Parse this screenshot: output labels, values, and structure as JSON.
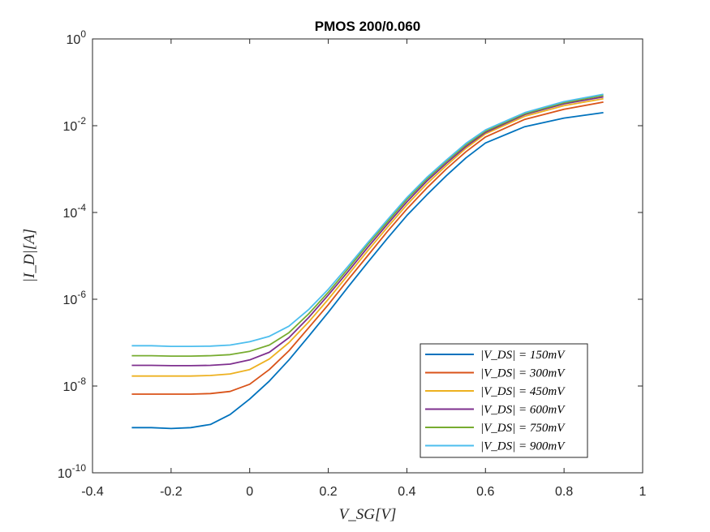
{
  "chart_data": {
    "type": "line",
    "title": "PMOS 200/0.060",
    "xlabel": "V_SG[V]",
    "ylabel": "|I_D|[A]",
    "xlim": [
      -0.4,
      1
    ],
    "ylim": [
      1e-10,
      1
    ],
    "yscale": "log",
    "grid": false,
    "legend_position": "bottom-right",
    "x_ticks": [
      "-0.4",
      "-0.2",
      "0",
      "0.2",
      "0.4",
      "0.6",
      "0.8",
      "1"
    ],
    "y_ticks": [
      {
        "base": "10",
        "exp": "-10"
      },
      {
        "base": "10",
        "exp": "-8"
      },
      {
        "base": "10",
        "exp": "-6"
      },
      {
        "base": "10",
        "exp": "-4"
      },
      {
        "base": "10",
        "exp": "-2"
      },
      {
        "base": "10",
        "exp": "0"
      }
    ],
    "x": [
      -0.3,
      -0.25,
      -0.2,
      -0.15,
      -0.1,
      -0.05,
      0.0,
      0.05,
      0.1,
      0.15,
      0.2,
      0.25,
      0.3,
      0.35,
      0.4,
      0.45,
      0.5,
      0.55,
      0.6,
      0.7,
      0.8,
      0.9
    ],
    "series": [
      {
        "name": "|V_DS| = 150mV",
        "color": "#0072BD",
        "values": [
          1.1e-09,
          1.1e-09,
          1.05e-09,
          1.1e-09,
          1.3e-09,
          2.2e-09,
          5e-09,
          1.3e-08,
          4e-08,
          1.4e-07,
          5e-07,
          1.9e-06,
          7e-06,
          2.5e-05,
          8.5e-05,
          0.00025,
          0.0007,
          0.0018,
          0.004,
          0.0095,
          0.015,
          0.02
        ]
      },
      {
        "name": "|V_DS| = 300mV",
        "color": "#D95319",
        "values": [
          6.5e-09,
          6.5e-09,
          6.5e-09,
          6.5e-09,
          6.7e-09,
          7.5e-09,
          1.1e-08,
          2.4e-08,
          6.5e-08,
          2.2e-07,
          7.5e-07,
          2.8e-06,
          1e-05,
          3.6e-05,
          0.00012,
          0.00036,
          0.001,
          0.0025,
          0.0055,
          0.014,
          0.024,
          0.035
        ]
      },
      {
        "name": "|V_DS| = 450mV",
        "color": "#EDB120",
        "values": [
          1.7e-08,
          1.7e-08,
          1.7e-08,
          1.7e-08,
          1.75e-08,
          1.9e-08,
          2.4e-08,
          4.2e-08,
          1e-07,
          3e-07,
          1e-06,
          3.6e-06,
          1.3e-05,
          4.5e-05,
          0.00015,
          0.00045,
          0.0012,
          0.003,
          0.0065,
          0.0165,
          0.029,
          0.042
        ]
      },
      {
        "name": "|V_DS| = 600mV",
        "color": "#7E2F8E",
        "values": [
          3e-08,
          3e-08,
          2.95e-08,
          2.95e-08,
          3e-08,
          3.2e-08,
          4e-08,
          6e-08,
          1.3e-07,
          3.8e-07,
          1.25e-06,
          4.3e-06,
          1.55e-05,
          5.3e-05,
          0.000175,
          0.00052,
          0.00135,
          0.0033,
          0.007,
          0.018,
          0.032,
          0.046
        ]
      },
      {
        "name": "|V_DS| = 750mV",
        "color": "#77AC30",
        "values": [
          5e-08,
          5e-08,
          4.9e-08,
          4.9e-08,
          5e-08,
          5.3e-08,
          6.3e-08,
          8.8e-08,
          1.7e-07,
          4.6e-07,
          1.45e-06,
          5e-06,
          1.8e-05,
          6e-05,
          0.0002,
          0.00058,
          0.0015,
          0.0036,
          0.0075,
          0.019,
          0.034,
          0.05
        ]
      },
      {
        "name": "|V_DS| = 900mV",
        "color": "#4DBEEE",
        "values": [
          8.5e-08,
          8.5e-08,
          8.2e-08,
          8.2e-08,
          8.3e-08,
          8.8e-08,
          1.05e-07,
          1.4e-07,
          2.4e-07,
          5.8e-07,
          1.7e-06,
          5.7e-06,
          2e-05,
          6.7e-05,
          0.00022,
          0.00063,
          0.0016,
          0.0039,
          0.008,
          0.02,
          0.036,
          0.053
        ]
      }
    ]
  }
}
